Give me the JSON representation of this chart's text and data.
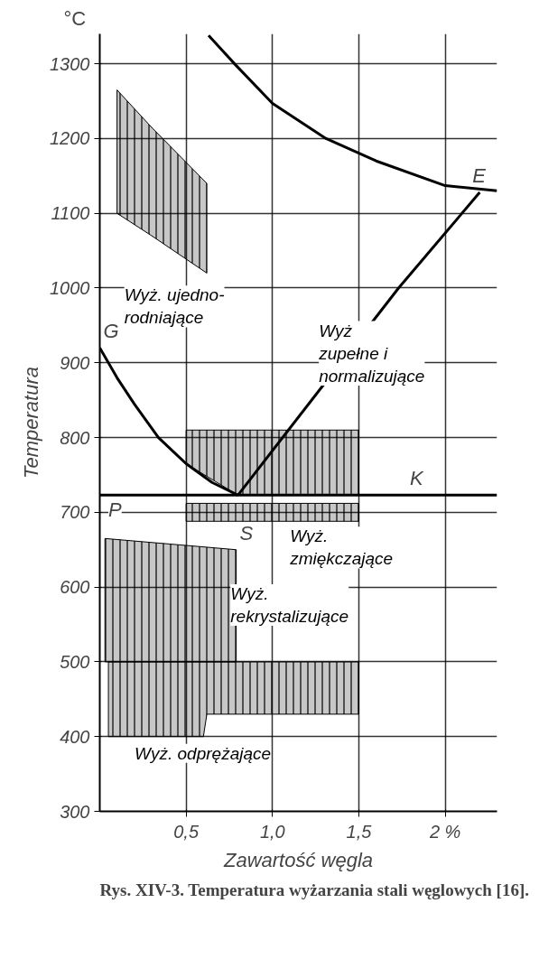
{
  "chart_data": {
    "type": "line",
    "title": "Rys. XIV-3. Temperatura wyżarzania stali węglowych [16].",
    "xlabel": "Zawartość węgla",
    "ylabel": "Temperatura",
    "xlim": [
      0,
      2.3
    ],
    "ylim": [
      300,
      1340
    ],
    "xticks": [
      {
        "value": 0.5,
        "label": "0,5"
      },
      {
        "value": 1.0,
        "label": "1,0"
      },
      {
        "value": 1.5,
        "label": "1,5"
      },
      {
        "value": 2,
        "label": "2 %"
      }
    ],
    "yticks": [
      300,
      400,
      500,
      600,
      700,
      800,
      900,
      1000,
      1100,
      1200,
      1300
    ],
    "grid": true,
    "marker": "none",
    "line_style": "solid",
    "series": [
      {
        "color": "#000000",
        "x": [
          0,
          0.1,
          0.2,
          0.34,
          0.5,
          0.65,
          0.8
        ],
        "values": [
          920,
          880,
          845,
          800,
          765,
          740,
          723
        ]
      },
      {
        "color": "#000000",
        "x": [
          0.8,
          1.73,
          2.2
        ],
        "values": [
          723,
          1000,
          1128
        ]
      },
      {
        "color": "#000000",
        "x": [
          0.63,
          0.78,
          1.0,
          1.31,
          1.6,
          2.0,
          2.3
        ],
        "values": [
          1338,
          1300,
          1247,
          1200,
          1170,
          1137,
          1130
        ]
      },
      {
        "color": "#000000",
        "x": [
          0,
          2.3
        ],
        "values": [
          723,
          723
        ]
      },
      {
        "type": "area",
        "name": "Wyż. ujedno-\nrodniające",
        "color": "#000000",
        "x": [
          0.1,
          0.3,
          0.62
        ],
        "values": [
          null,
          null,
          null
        ],
        "lower": [
          1100,
          1070,
          1020
        ],
        "upper": [
          1265,
          1215,
          1140
        ]
      },
      {
        "type": "area",
        "name": "Wyż\nzupełne i\nnormalizujące",
        "color": "#000000",
        "x": [
          0.5,
          0.8,
          1.5
        ],
        "values": [
          null,
          null,
          null
        ],
        "lower": [
          765,
          723,
          723
        ],
        "upper": [
          810,
          810,
          810
        ]
      },
      {
        "type": "area",
        "name": "Wyż.\nzmiękczające",
        "color": "#000000",
        "x": [
          0.5,
          1.0,
          1.5
        ],
        "values": [
          null,
          null,
          null
        ],
        "lower": [
          688,
          688,
          688
        ],
        "upper": [
          712,
          712,
          712
        ]
      },
      {
        "type": "area",
        "name": "Wyż.\nrekrystalizujące",
        "color": "#000000",
        "x": [
          0.03,
          0.79
        ],
        "values": [
          null,
          null
        ],
        "lower": [
          500,
          500
        ],
        "upper": [
          665,
          650
        ]
      },
      {
        "type": "area",
        "name": "Wyż. odprężające",
        "color": "#000000",
        "x": [
          0.05,
          0.6,
          0.62,
          1.5
        ],
        "values": [
          null,
          null,
          null,
          null
        ],
        "lower": [
          400,
          400,
          430,
          430
        ],
        "upper": [
          500,
          500,
          500,
          500
        ]
      }
    ],
    "annotations": [
      "°C",
      {
        "text": "G",
        "x": 0,
        "y": 920
      },
      {
        "text": "S",
        "x": 0.8,
        "y": 723
      },
      {
        "text": "E",
        "x": 2.2,
        "y": 1128
      },
      {
        "text": "K",
        "x": 1.9,
        "y": 723
      },
      {
        "text": "P",
        "x": 0.05,
        "y": 723
      }
    ]
  }
}
